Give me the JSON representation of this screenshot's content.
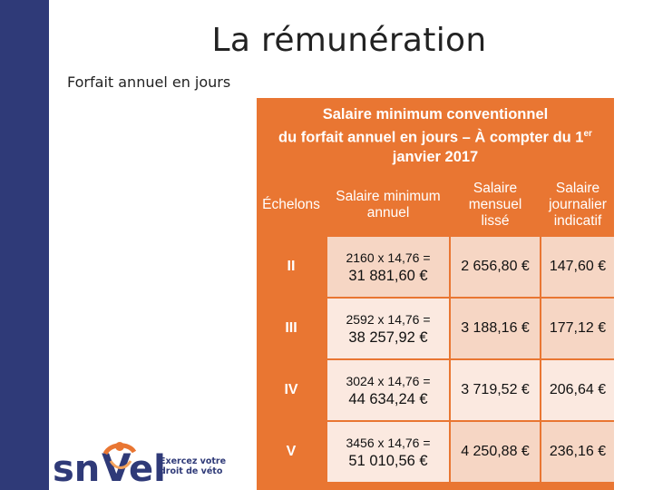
{
  "slide": {
    "title": "La rémunération",
    "subtitle": "Forfait annuel en jours"
  },
  "table": {
    "title_line1": "Salaire minimum conventionnel",
    "title_line2": "du forfait annuel en jours – À compter du 1",
    "title_sup": "er",
    "title_line3": "janvier 2017",
    "headers": {
      "echelons": "Échelons",
      "annual_line1": "Salaire minimum",
      "annual_line2": "annuel",
      "monthly_line1": "Salaire",
      "monthly_line2": "mensuel",
      "monthly_line3": "lissé",
      "daily_line1": "Salaire",
      "daily_line2": "journalier",
      "daily_line3": "indicatif"
    },
    "rows": [
      {
        "echelon": "II",
        "calc": "2160 x 14,76 =",
        "annual": "31 881,60 €",
        "monthly": "2 656,80 €",
        "daily": "147,60 €"
      },
      {
        "echelon": "III",
        "calc": "2592 x 14,76 =",
        "annual": "38 257,92 €",
        "monthly": "3 188,16 €",
        "daily": "177,12 €"
      },
      {
        "echelon": "IV",
        "calc": "3024 x 14,76 =",
        "annual": "44 634,24 €",
        "monthly": "3 719,52 €",
        "daily": "206,64 €"
      },
      {
        "echelon": "V",
        "calc": "3456 x 14,76 =",
        "annual": "51 010,56 €",
        "monthly": "4 250,88 €",
        "daily": "236,16 €"
      }
    ]
  },
  "logo": {
    "brand": "snVel",
    "tagline_line1": "Exercez votre",
    "tagline_line2": "droit de véto"
  },
  "colors": {
    "sidebar": "#2f3a78",
    "table_orange": "#e97632",
    "row_a": "#f6d6c4",
    "row_b": "#fbe9e0"
  }
}
